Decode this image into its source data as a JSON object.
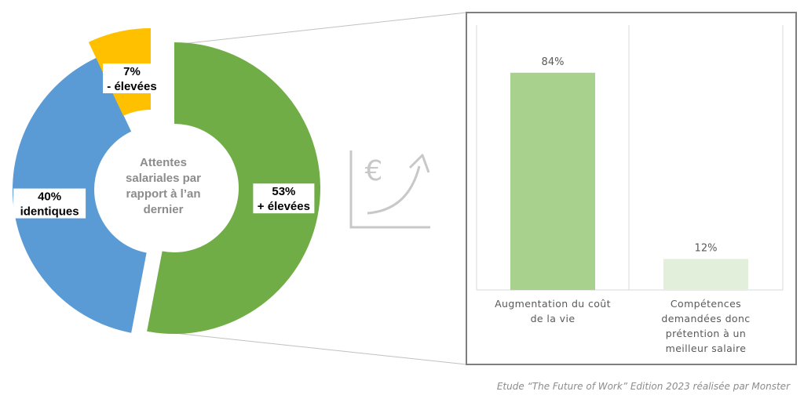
{
  "chart_data": [
    {
      "type": "pie",
      "variant": "donut",
      "center_title": [
        "Attentes",
        "salariales par",
        "rapport à  l’an",
        "dernier"
      ],
      "slices": [
        {
          "value": 53,
          "label_lines": [
            "53%",
            "+ élevées"
          ],
          "color": "#70ad47"
        },
        {
          "value": 40,
          "label_lines": [
            "40%",
            "identiques"
          ],
          "color": "#5b9bd5"
        },
        {
          "value": 7,
          "label_lines": [
            "7%",
            "- élevées"
          ],
          "color": "#ffc000"
        }
      ]
    },
    {
      "type": "bar",
      "categories": [
        [
          "Augmentation du coût",
          "de la vie"
        ],
        [
          "Compétences",
          "demandées donc",
          "prétention à un",
          "meilleur salaire"
        ]
      ],
      "values": [
        84,
        12
      ],
      "data_labels": [
        "84%",
        "12%"
      ],
      "bar_colors": [
        "#a9d18e",
        "#e2efda"
      ],
      "ylim": [
        0,
        100
      ],
      "grid": false
    }
  ],
  "icon": {
    "name": "euro-growth-icon",
    "symbol": "€",
    "color": "#c8c8c8"
  },
  "source": "Etude “The Future of Work” Edition 2023 réalisée par Monster"
}
